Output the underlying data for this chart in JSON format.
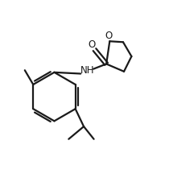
{
  "background_color": "#ffffff",
  "line_color": "#1a1a1a",
  "line_width": 1.6,
  "text_color": "#1a1a1a",
  "font_size": 8.5,
  "figsize": [
    2.1,
    2.36
  ],
  "dpi": 100,
  "xlim": [
    0,
    10
  ],
  "ylim": [
    0,
    11.2
  ]
}
